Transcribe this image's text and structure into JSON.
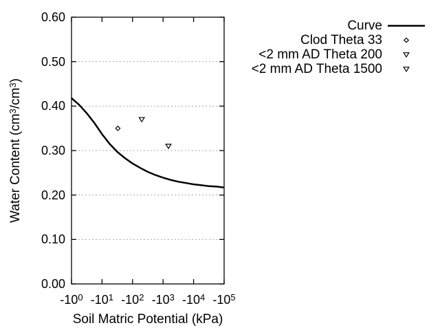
{
  "window": {
    "background": "#ffffff"
  },
  "colors": {
    "foreground": "#000000",
    "grid": "#a8a8a8",
    "marker_fill": "#ffffff"
  },
  "chart_data": {
    "type": "line",
    "title": "",
    "xlabel": "Soil Matric Potential (kPa)",
    "ylabel": "Water Content (cm^3/cm^3)",
    "x_scale": "negative-log10",
    "xlim_decades": [
      0,
      5
    ],
    "ylim": [
      0.0,
      0.6
    ],
    "grid": {
      "horizontal": true,
      "vertical": false,
      "style": "dotted",
      "at": [
        0.1,
        0.2,
        0.3,
        0.4,
        0.5
      ]
    },
    "legend_position": "top-right-outside",
    "x_ticks": [
      {
        "label": "-10^0",
        "value": -1
      },
      {
        "label": "-10^1",
        "value": -10
      },
      {
        "label": "-10^2",
        "value": -100
      },
      {
        "label": "-10^3",
        "value": -1000
      },
      {
        "label": "-10^4",
        "value": -10000
      },
      {
        "label": "-10^5",
        "value": -100000
      }
    ],
    "y_ticks": [
      {
        "label": "0.00",
        "value": 0.0
      },
      {
        "label": "0.10",
        "value": 0.1
      },
      {
        "label": "0.20",
        "value": 0.2
      },
      {
        "label": "0.30",
        "value": 0.3
      },
      {
        "label": "0.40",
        "value": 0.4
      },
      {
        "label": "0.50",
        "value": 0.5
      },
      {
        "label": "0.60",
        "value": 0.6
      }
    ],
    "series": [
      {
        "name": "Curve",
        "kind": "line",
        "marker": "none",
        "points": [
          [
            -1,
            0.418
          ],
          [
            -1.78,
            0.403
          ],
          [
            -3.16,
            0.384
          ],
          [
            -5.62,
            0.362
          ],
          [
            -10,
            0.337
          ],
          [
            -17.8,
            0.315
          ],
          [
            -31.6,
            0.297
          ],
          [
            -56.2,
            0.283
          ],
          [
            -100,
            0.271
          ],
          [
            -178,
            0.261
          ],
          [
            -316,
            0.252
          ],
          [
            -562,
            0.245
          ],
          [
            -1000,
            0.239
          ],
          [
            -1780,
            0.234
          ],
          [
            -3160,
            0.23
          ],
          [
            -5620,
            0.227
          ],
          [
            -10000,
            0.224
          ],
          [
            -17800,
            0.222
          ],
          [
            -31600,
            0.22
          ],
          [
            -56200,
            0.219
          ],
          [
            -100000,
            0.217
          ]
        ]
      },
      {
        "name": "Clod Theta 33",
        "kind": "scatter",
        "marker": "diamond-open",
        "points": [
          [
            -33,
            0.35
          ]
        ]
      },
      {
        "name": "<2 mm AD Theta 200",
        "kind": "scatter",
        "marker": "triangle-down-open",
        "points": [
          [
            -200,
            0.37
          ]
        ]
      },
      {
        "name": "<2 mm AD Theta 1500",
        "kind": "scatter",
        "marker": "triangle-down-open",
        "points": [
          [
            -1500,
            0.31
          ]
        ]
      }
    ]
  }
}
